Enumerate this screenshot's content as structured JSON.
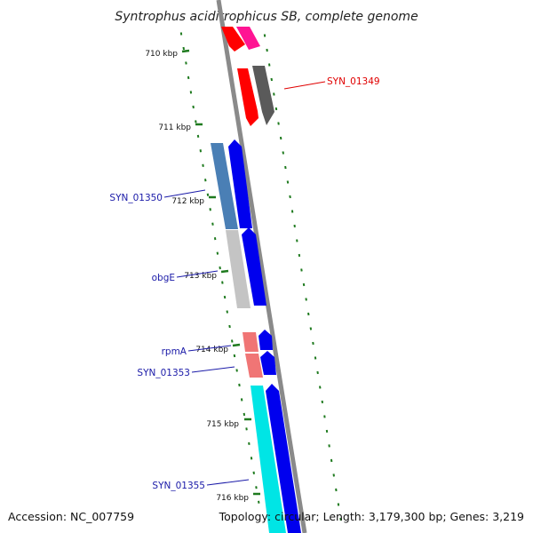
{
  "title": "Syntrophus aciditrophicus SB, complete genome",
  "footer": {
    "accession": "Accession: NC_007759",
    "topology": "Topology: circular; Length: 3,179,300 bp; Genes: 3,219"
  },
  "scale_ticks": [
    "710 kbp",
    "711 kbp",
    "712 kbp",
    "713 kbp",
    "714 kbp",
    "715 kbp",
    "716 kbp"
  ],
  "gene_labels": [
    {
      "id": "syn01349",
      "text": "SYN_01349",
      "color": "#e00000"
    },
    {
      "id": "syn01350",
      "text": "SYN_01350",
      "color": "#1a1aa8"
    },
    {
      "id": "obge",
      "text": "obgE",
      "color": "#1a1aa8"
    },
    {
      "id": "rpma",
      "text": "rpmA",
      "color": "#1a1aa8"
    },
    {
      "id": "syn01353",
      "text": "SYN_01353",
      "color": "#1a1aa8"
    },
    {
      "id": "syn01355",
      "text": "SYN_01355",
      "color": "#1a1aa8"
    }
  ],
  "colors": {
    "backbone": "#8a8a8a",
    "tick": "#1e7a1e",
    "forward_cds": "#0000ee",
    "red_cds": "#ff0000",
    "pink_cds": "#ff1493",
    "dark_cds": "#555555",
    "steel_cds": "#4a7fb5",
    "grey_cds": "#c0c0c0",
    "salmon_cds": "#ef7070",
    "cyan_cds": "#00e5e5"
  }
}
